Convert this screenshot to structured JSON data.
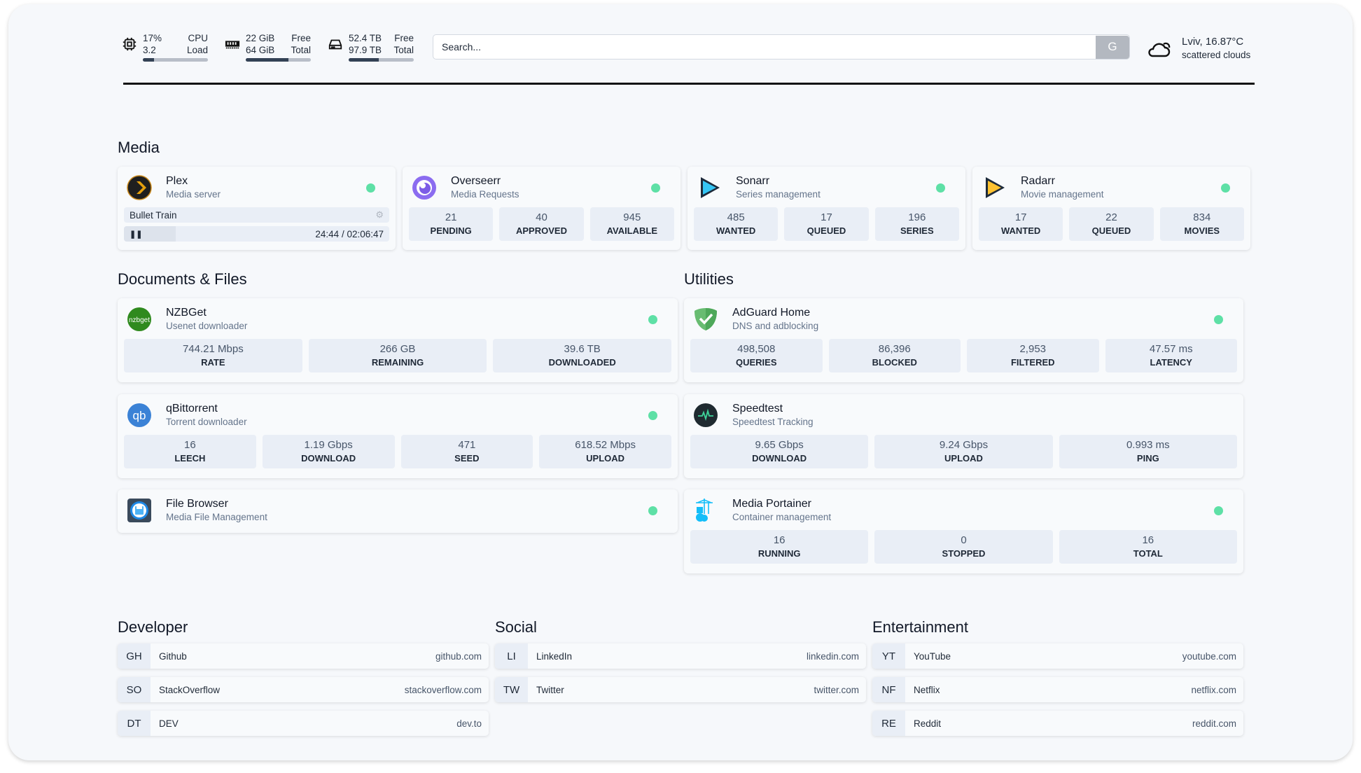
{
  "header": {
    "cpu": {
      "value": "17%",
      "label": "CPU",
      "load": "3.2",
      "load_label": "Load",
      "usage_percent": 17
    },
    "ram": {
      "free": "22 GiB",
      "free_label": "Free",
      "total": "64 GiB",
      "total_label": "Total",
      "used_percent": 66
    },
    "disk": {
      "free": "52.4 TB",
      "free_label": "Free",
      "total": "97.9 TB",
      "total_label": "Total",
      "used_percent": 46
    },
    "search": {
      "placeholder": "Search...",
      "button": "G"
    },
    "weather": {
      "location_temp": "Lviv, 16.87°C",
      "condition": "scattered clouds"
    }
  },
  "colors": {
    "status_online": "#5ee0a6",
    "stat_bg": "#e9eef6",
    "page_bg": "#f6f8fb"
  },
  "media": {
    "title": "Media",
    "services": [
      {
        "name": "Plex",
        "desc": "Media server",
        "now_playing": {
          "title": "Bullet Train",
          "time": "24:44 / 02:06:47",
          "progress_percent": 19.5
        }
      },
      {
        "name": "Overseerr",
        "desc": "Media Requests",
        "stats": [
          {
            "v": "21",
            "l": "PENDING"
          },
          {
            "v": "40",
            "l": "APPROVED"
          },
          {
            "v": "945",
            "l": "AVAILABLE"
          }
        ]
      },
      {
        "name": "Sonarr",
        "desc": "Series management",
        "stats": [
          {
            "v": "485",
            "l": "WANTED"
          },
          {
            "v": "17",
            "l": "QUEUED"
          },
          {
            "v": "196",
            "l": "SERIES"
          }
        ]
      },
      {
        "name": "Radarr",
        "desc": "Movie management",
        "stats": [
          {
            "v": "17",
            "l": "WANTED"
          },
          {
            "v": "22",
            "l": "QUEUED"
          },
          {
            "v": "834",
            "l": "MOVIES"
          }
        ]
      }
    ]
  },
  "documents": {
    "title": "Documents & Files",
    "services": [
      {
        "name": "NZBGet",
        "desc": "Usenet downloader",
        "logo": "nzbget",
        "stats": [
          {
            "v": "744.21 Mbps",
            "l": "RATE"
          },
          {
            "v": "266 GB",
            "l": "REMAINING"
          },
          {
            "v": "39.6 TB",
            "l": "DOWNLOADED"
          }
        ]
      },
      {
        "name": "qBittorrent",
        "desc": "Torrent downloader",
        "logo": "qb",
        "stats": [
          {
            "v": "16",
            "l": "LEECH"
          },
          {
            "v": "1.19 Gbps",
            "l": "DOWNLOAD"
          },
          {
            "v": "471",
            "l": "SEED"
          },
          {
            "v": "618.52 Mbps",
            "l": "UPLOAD"
          }
        ]
      },
      {
        "name": "File Browser",
        "desc": "Media File Management"
      }
    ]
  },
  "utilities": {
    "title": "Utilities",
    "services": [
      {
        "name": "AdGuard Home",
        "desc": "DNS and adblocking",
        "stats": [
          {
            "v": "498,508",
            "l": "QUERIES"
          },
          {
            "v": "86,396",
            "l": "BLOCKED"
          },
          {
            "v": "2,953",
            "l": "FILTERED"
          },
          {
            "v": "47.57 ms",
            "l": "LATENCY"
          }
        ]
      },
      {
        "name": "Speedtest",
        "desc": "Speedtest Tracking",
        "stats": [
          {
            "v": "9.65 Gbps",
            "l": "DOWNLOAD"
          },
          {
            "v": "9.24 Gbps",
            "l": "UPLOAD"
          },
          {
            "v": "0.993 ms",
            "l": "PING"
          }
        ]
      },
      {
        "name": "Media Portainer",
        "desc": "Container management",
        "stats": [
          {
            "v": "16",
            "l": "RUNNING"
          },
          {
            "v": "0",
            "l": "STOPPED"
          },
          {
            "v": "16",
            "l": "TOTAL"
          }
        ]
      }
    ]
  },
  "bookmarks": [
    {
      "title": "Developer",
      "items": [
        {
          "abbr": "GH",
          "name": "Github",
          "url": "github.com"
        },
        {
          "abbr": "SO",
          "name": "StackOverflow",
          "url": "stackoverflow.com"
        },
        {
          "abbr": "DT",
          "name": "DEV",
          "url": "dev.to"
        }
      ]
    },
    {
      "title": "Social",
      "items": [
        {
          "abbr": "LI",
          "name": "LinkedIn",
          "url": "linkedin.com"
        },
        {
          "abbr": "TW",
          "name": "Twitter",
          "url": "twitter.com"
        }
      ]
    },
    {
      "title": "Entertainment",
      "items": [
        {
          "abbr": "YT",
          "name": "YouTube",
          "url": "youtube.com"
        },
        {
          "abbr": "NF",
          "name": "Netflix",
          "url": "netflix.com"
        },
        {
          "abbr": "RE",
          "name": "Reddit",
          "url": "reddit.com"
        }
      ]
    }
  ]
}
